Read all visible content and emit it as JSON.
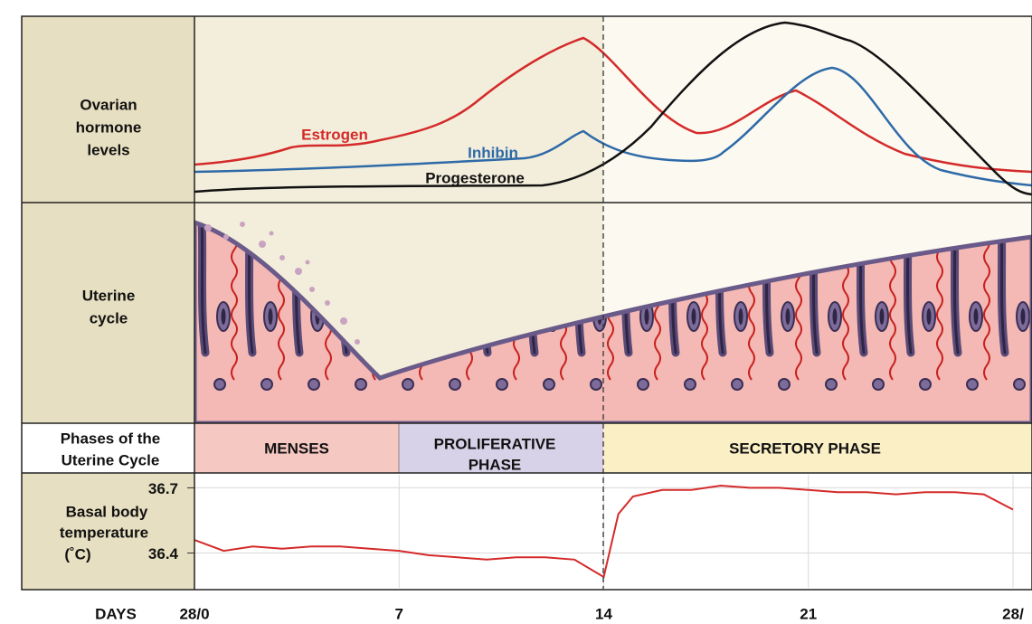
{
  "hormone_panel": {
    "label": [
      "Ovarian",
      "hormone",
      "levels"
    ],
    "curves": [
      {
        "name": "Estrogen",
        "color": "#d42a2a"
      },
      {
        "name": "Inhibin",
        "color": "#2e6aa8"
      },
      {
        "name": "Progesterone",
        "color": "#111111"
      }
    ]
  },
  "uterine_panel": {
    "label": [
      "Uterine",
      "cycle"
    ]
  },
  "phase_panel": {
    "label": [
      "Phases of the",
      "Uterine Cycle"
    ],
    "phases": [
      {
        "label": [
          "MENSES"
        ],
        "color": "#f6c8c2"
      },
      {
        "label": [
          "PROLIFERATIVE",
          "PHASE"
        ],
        "color": "#d8d2e8"
      },
      {
        "label": [
          "SECRETORY PHASE"
        ],
        "color": "#fbefc6"
      }
    ]
  },
  "chart_data": {
    "type": "line",
    "ylabel": [
      "Basal body",
      "temperature",
      "(˚C)"
    ],
    "xlabel": "DAYS",
    "x": [
      0,
      1,
      2,
      3,
      4,
      5,
      6,
      7,
      8,
      9,
      10,
      11,
      12,
      13,
      14,
      14.5,
      15,
      16,
      17,
      18,
      19,
      20,
      21,
      22,
      23,
      24,
      25,
      26,
      27,
      28
    ],
    "values": [
      36.46,
      36.41,
      36.43,
      36.42,
      36.43,
      36.43,
      36.42,
      36.41,
      36.39,
      36.38,
      36.37,
      36.38,
      36.38,
      36.37,
      36.29,
      36.58,
      36.66,
      36.69,
      36.69,
      36.71,
      36.7,
      36.7,
      36.69,
      36.68,
      36.68,
      36.67,
      36.68,
      36.68,
      36.67,
      36.6
    ],
    "color": "#d42a2a",
    "xlim": [
      0,
      28
    ],
    "xticks": [
      {
        "value": 0,
        "label": "28/0"
      },
      7,
      14,
      21,
      {
        "value": 28,
        "label": "28/"
      }
    ],
    "ylim": [
      36.24,
      36.76
    ],
    "yticks": [
      36.4,
      36.7
    ],
    "grid": true
  }
}
